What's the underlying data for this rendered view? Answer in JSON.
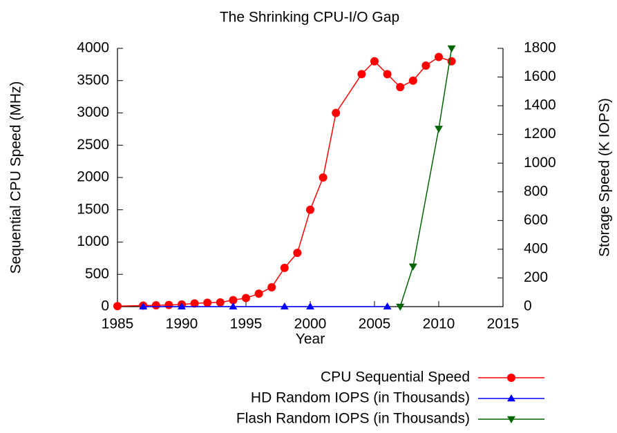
{
  "chart_data": {
    "type": "line",
    "title": "The Shrinking CPU-I/O Gap",
    "x_label": "Year",
    "y_label": "Sequential CPU Speed (MHz)",
    "y2_label": "Storage Speed (K IOPS)",
    "xlim": [
      1985,
      2015
    ],
    "xticks": [
      1985,
      1990,
      1995,
      2000,
      2005,
      2010,
      2015
    ],
    "ylim": [
      0,
      4000
    ],
    "yticks": [
      0,
      500,
      1000,
      1500,
      2000,
      2500,
      3000,
      3500,
      4000
    ],
    "y2lim": [
      0,
      1800
    ],
    "y2ticks": [
      0,
      200,
      400,
      600,
      800,
      1000,
      1200,
      1400,
      1600,
      1800
    ],
    "series": [
      {
        "name": "CPU Sequential Speed",
        "color": "#ff0000",
        "marker": "circle",
        "x": [
          1985,
          1987,
          1988,
          1989,
          1990,
          1991,
          1992,
          1993,
          1994,
          1995,
          1996,
          1997,
          1998,
          1999,
          2000,
          2001,
          2002,
          2004,
          2005,
          2006,
          2007,
          2008,
          2009,
          2010,
          2011
        ],
        "values": [
          8,
          16,
          20,
          25,
          33,
          50,
          60,
          66,
          100,
          133,
          200,
          300,
          600,
          833,
          1500,
          2000,
          3000,
          3600,
          3800,
          3600,
          3400,
          3500,
          3733,
          3866,
          3800
        ]
      },
      {
        "name": "HD Random IOPS (in Thousands)",
        "color": "#0000ff",
        "marker": "triangle-up",
        "axis": "y2",
        "x": [
          1987,
          1990,
          1994,
          1998,
          2000,
          2006
        ],
        "values": [
          0.1,
          0.1,
          0.15,
          0.2,
          0.25,
          0.3
        ]
      },
      {
        "name": "Flash Random IOPS (in Thousands)",
        "color": "#006400",
        "marker": "triangle-down",
        "axis": "y2",
        "x": [
          2007,
          2008,
          2010,
          2011
        ],
        "values": [
          0,
          280,
          1240,
          1800
        ]
      }
    ]
  }
}
